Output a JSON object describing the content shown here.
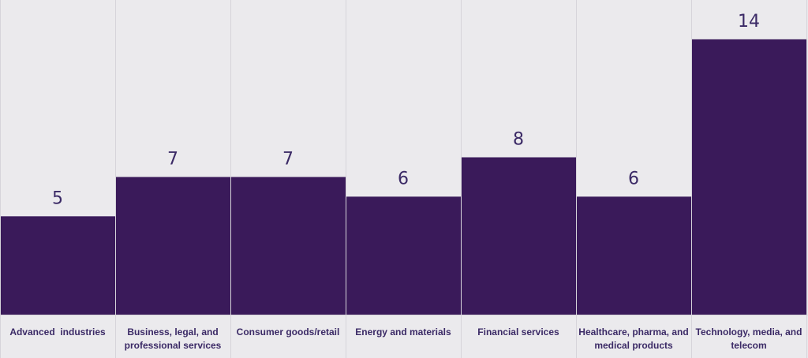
{
  "chart_data": {
    "type": "bar",
    "categories": [
      "Advanced  industries",
      "Business, legal, and professional services",
      "Consumer goods/retail",
      "Energy and materials",
      "Financial services",
      "Healthcare, pharma, and medical products",
      "Technology, media, and telecom"
    ],
    "category_lines": [
      [
        "Advanced  industries"
      ],
      [
        "Business, legal, and",
        "professional services"
      ],
      [
        "Consumer goods/retail"
      ],
      [
        "Energy and materials"
      ],
      [
        "Financial services"
      ],
      [
        "Healthcare, pharma, and",
        "medical products"
      ],
      [
        "Technology, media, and",
        "telecom"
      ]
    ],
    "values": [
      5,
      7,
      7,
      6,
      8,
      6,
      14
    ],
    "ylim": [
      0,
      16
    ],
    "grid": true,
    "colors": {
      "bar": "#3a1a5a",
      "background": "#ebeaed",
      "gridline": "#d6d4da",
      "label": "#3b2a66"
    }
  }
}
